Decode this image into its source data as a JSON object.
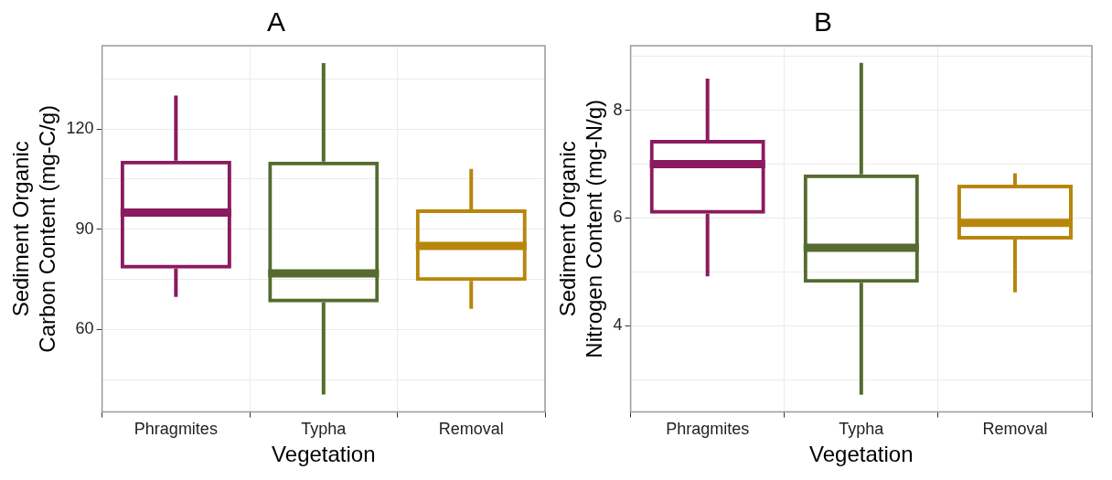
{
  "chart_data": [
    {
      "type": "box",
      "title": "A",
      "xlabel": "Vegetation",
      "ylabel": "Sediment Organic Carbon Content (mg-C/g)",
      "categories": [
        "Phragmites",
        "Typha",
        "Removal"
      ],
      "colors": [
        "#8b1a5e",
        "#556b2f",
        "#b8860b"
      ],
      "boxes": [
        {
          "low": 69.7,
          "q1": 78.2,
          "median": 95,
          "q3": 110.5,
          "high": 130
        },
        {
          "low": 40.5,
          "q1": 68.1,
          "median": 76.8,
          "q3": 110.2,
          "high": 139.7
        },
        {
          "low": 66.2,
          "q1": 74.5,
          "median": 85,
          "q3": 95.9,
          "high": 108
        }
      ],
      "ylim": [
        35.3,
        144.9
      ],
      "yticks": [
        {
          "value": 45,
          "label": null
        },
        60,
        {
          "value": 75,
          "label": null
        },
        90,
        {
          "value": 105,
          "label": null
        },
        120,
        {
          "value": 135,
          "label": null
        }
      ],
      "grid": true
    },
    {
      "type": "box",
      "title": "B",
      "xlabel": "Vegetation",
      "ylabel": "Sediment Organic Nitrogen Content (mg-N/g)",
      "categories": [
        "Phragmites",
        "Typha",
        "Removal"
      ],
      "colors": [
        "#8b1a5e",
        "#556b2f",
        "#b8860b"
      ],
      "boxes": [
        {
          "low": 4.92,
          "q1": 6.08,
          "median": 7.0,
          "q3": 7.45,
          "high": 8.59
        },
        {
          "low": 2.72,
          "q1": 4.8,
          "median": 5.45,
          "q3": 6.81,
          "high": 8.88
        },
        {
          "low": 4.62,
          "q1": 5.6,
          "median": 5.91,
          "q3": 6.62,
          "high": 6.83
        }
      ],
      "ylim": [
        2.4,
        9.2
      ],
      "yticks": [
        {
          "value": 3,
          "label": null
        },
        4,
        {
          "value": 5,
          "label": null
        },
        6,
        {
          "value": 7,
          "label": null
        },
        8,
        {
          "value": 9,
          "label": null
        }
      ],
      "grid": true
    }
  ]
}
